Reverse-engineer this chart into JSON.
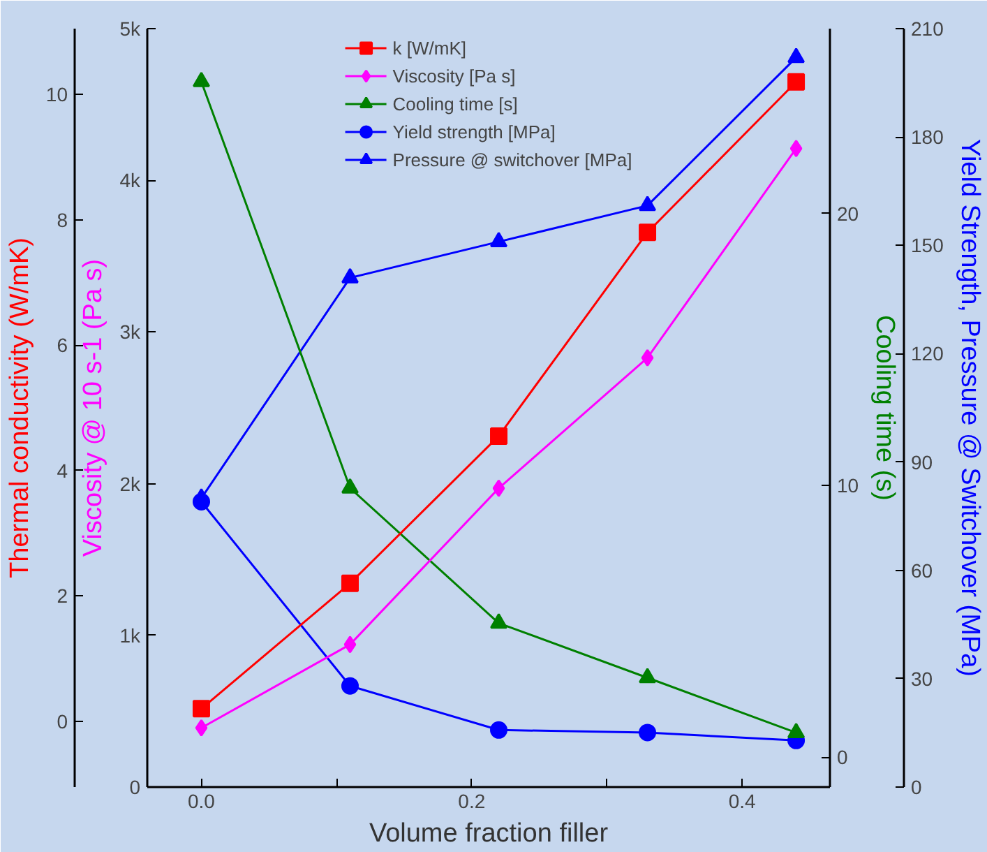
{
  "chart_data": [
    {
      "type": "line",
      "xlabel": "Volume fraction filler",
      "ylabel": "Thermal conductivity (W/mK)",
      "y2label": "Viscosity @ 10 s-1 (Pa s)",
      "y3label": "Cooling time (s)",
      "x": [
        0,
        0.11,
        0.22,
        0.33,
        0.44
      ],
      "xlim": [
        -0.04,
        0.465
      ],
      "xticks": [
        {
          "value": 0,
          "label": "0.0"
        },
        {
          "value": 0.1,
          "label": null
        },
        {
          "value": 0.2,
          "label": "0.2"
        },
        {
          "value": 0.3,
          "label": null
        },
        {
          "value": 0.4,
          "label": "0.4"
        }
      ],
      "ylim": [
        -1.05,
        11.05
      ],
      "yticks": [
        0,
        2,
        4,
        6,
        8,
        10
      ],
      "y2lim": [
        0,
        5000
      ],
      "y2ticks": [
        0,
        {
          "value": 1000,
          "label": "1k"
        },
        {
          "value": 2000,
          "label": "2k"
        },
        {
          "value": 3000,
          "label": "3k"
        },
        {
          "value": 4000,
          "label": "4k"
        },
        {
          "value": 5000,
          "label": "5k"
        }
      ],
      "y3lim": [
        -1.1,
        26.8
      ],
      "y3ticks": [
        0,
        10,
        20
      ],
      "grid": false,
      "legend": "top",
      "line_style": "solid",
      "series": [
        {
          "name": "k [W/mK]",
          "color": "#ff0000",
          "marker": "square",
          "values": [
            0.2,
            2.2,
            4.55,
            7.8,
            10.2
          ]
        },
        {
          "name": "Viscosity [Pa s]",
          "color": "#ff00ff",
          "marker": "diamond",
          "axis": "y2",
          "values": [
            390,
            940,
            1970,
            2830,
            4210
          ]
        },
        {
          "name": "Cooling time [s]",
          "color": "#008000",
          "marker": "triangle",
          "axis": "y3",
          "values": [
            24.85,
            9.9,
            4.93,
            2.92,
            0.9
          ]
        }
      ]
    },
    {
      "type": "line",
      "ylabel": "Yield Strength, Pressure @ Switchover (MPa)",
      "x": [
        0,
        0.11,
        0.22,
        0.33,
        0.44
      ],
      "xlim": [
        -0.04,
        0.465
      ],
      "ylim": [
        0,
        210
      ],
      "yticks": [
        0,
        30,
        60,
        90,
        120,
        150,
        180,
        210
      ],
      "tick_labels": "y",
      "grid": false,
      "legend": "top",
      "line_style": "solid",
      "series": [
        {
          "name": "Yield strength [MPa]",
          "color": "#0000ff",
          "marker": "circle",
          "values": [
            79,
            28,
            15.8,
            15.1,
            12.9
          ]
        },
        {
          "name": "Pressure @ switchover [MPa]",
          "color": "#0000ff",
          "marker": "triangle",
          "values": [
            80,
            141,
            151,
            161,
            202
          ]
        }
      ]
    }
  ]
}
